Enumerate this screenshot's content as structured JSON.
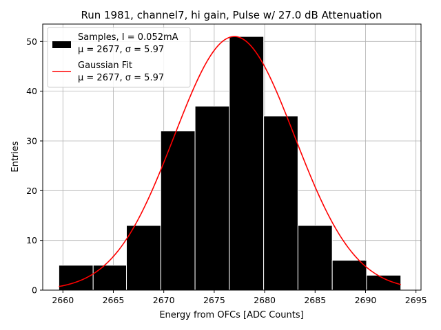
{
  "chart_data": {
    "type": "bar",
    "title": "Run 1981, channel7, hi gain, Pulse w/ 27.0 dB Attenuation",
    "xlabel": "Energy from OFCs [ADC Counts]",
    "ylabel": "Entries",
    "xlim": [
      2658,
      2695.5
    ],
    "ylim": [
      0,
      53.5
    ],
    "xticks": [
      2660,
      2665,
      2670,
      2675,
      2680,
      2685,
      2690,
      2695
    ],
    "yticks": [
      0,
      10,
      20,
      30,
      40,
      50
    ],
    "grid": true,
    "legend_position": "upper-left",
    "histogram": {
      "name": "Samples, I = 0.052mA",
      "stats": "μ = 2677, σ = 5.97",
      "color": "#000000",
      "edge_color": "#ffffff",
      "bin_edges": [
        2659.6,
        2663.0,
        2666.3,
        2669.7,
        2673.1,
        2676.5,
        2679.9,
        2683.3,
        2686.7,
        2690.1,
        2693.5
      ],
      "counts": [
        5,
        5,
        13,
        32,
        37,
        51,
        35,
        13,
        6,
        3
      ]
    },
    "fit": {
      "name": "Gaussian Fit",
      "stats": "μ = 2677, σ = 5.97",
      "color": "#ff0000",
      "mu": 2677,
      "sigma": 5.97,
      "amplitude": 51,
      "x_range": [
        2659.6,
        2693.5
      ]
    }
  }
}
